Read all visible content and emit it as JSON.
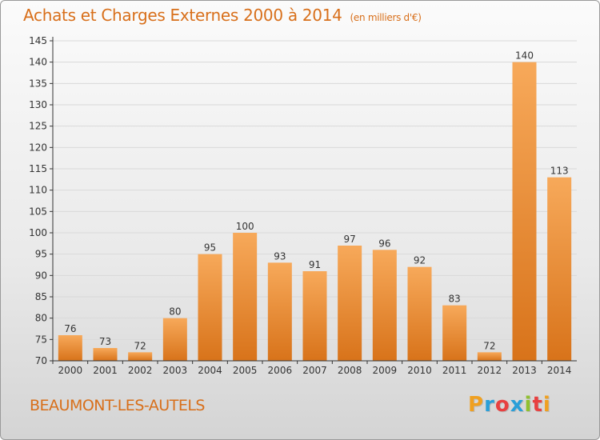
{
  "title": "Achats et Charges Externes 2000 à 2014",
  "unit": "(en milliers d'€)",
  "commune": "BEAUMONT-LES-AUTELS",
  "logo": {
    "letters": [
      "P",
      "r",
      "o",
      "x",
      "i",
      "t",
      "i"
    ],
    "colors": [
      "#f0a020",
      "#2a9fd8",
      "#e84040",
      "#2a9fd8",
      "#90c030",
      "#e84040",
      "#f0a020"
    ]
  },
  "colors": {
    "accent": "#d86f1a",
    "bar_top": "#f7a95a",
    "bar_bottom": "#d8731a",
    "grid": "#d9d9d9",
    "axis": "#333333"
  },
  "chart_data": {
    "type": "bar",
    "categories": [
      "2000",
      "2001",
      "2002",
      "2003",
      "2004",
      "2005",
      "2006",
      "2007",
      "2008",
      "2009",
      "2010",
      "2011",
      "2012",
      "2013",
      "2014"
    ],
    "values": [
      76,
      73,
      72,
      80,
      95,
      100,
      93,
      91,
      97,
      96,
      92,
      83,
      72,
      140,
      113
    ],
    "ylim": [
      70,
      145
    ],
    "yticks": [
      70,
      75,
      80,
      85,
      90,
      95,
      100,
      105,
      110,
      115,
      120,
      125,
      130,
      135,
      140,
      145
    ],
    "grid": true,
    "data_labels": true
  }
}
